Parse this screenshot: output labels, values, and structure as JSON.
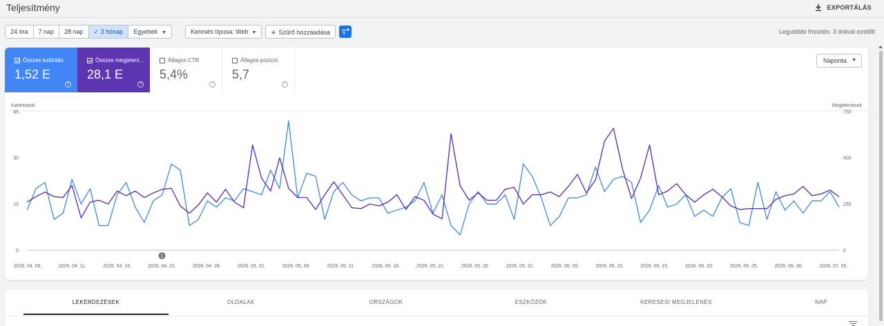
{
  "header": {
    "title": "Teljesítmény",
    "export_label": "EXPORTÁLÁS"
  },
  "filters": {
    "date_ranges": [
      {
        "label": "24 óra",
        "active": false
      },
      {
        "label": "7 nap",
        "active": false
      },
      {
        "label": "28 nap",
        "active": false
      },
      {
        "label": "3 hónap",
        "active": true
      },
      {
        "label": "Egyebek",
        "active": false,
        "dropdown": true
      }
    ],
    "search_type": "Keresés típusa: Web",
    "add_filter": "Szűrő hozzáadása",
    "last_update": "Legutóbbi frissítés: 3 órával ezelőtt"
  },
  "metrics": [
    {
      "label": "Összes kattintás",
      "value": "1,52 E",
      "checked": true,
      "color": "#4285f4"
    },
    {
      "label": "Összes megjelení...",
      "value": "28,1 E",
      "checked": true,
      "color": "#5e35b1"
    },
    {
      "label": "Átlagos CTR",
      "value": "5,4%",
      "checked": false
    },
    {
      "label": "Átlagos pozíció",
      "value": "5,7",
      "checked": false
    }
  ],
  "interval": "Naponta",
  "annotation_marker": "1",
  "chart_data": {
    "type": "line",
    "left_axis": {
      "title": "Kattintások",
      "ticks": [
        "45",
        "30",
        "15",
        "0"
      ],
      "range": [
        0,
        45
      ]
    },
    "right_axis": {
      "title": "Megjelenések",
      "ticks": [
        "750",
        "500",
        "250",
        "0"
      ],
      "range": [
        0,
        750
      ]
    },
    "x_labels": [
      "2026. 04. 06.",
      "2026. 04. 11.",
      "2026. 04. 16.",
      "2026. 04. 21.",
      "2026. 04. 26.",
      "2026. 05. 01.",
      "2026. 05. 06.",
      "2026. 05. 11.",
      "2026. 05. 16.",
      "2026. 05. 21.",
      "2026. 05. 26.",
      "2026. 05. 31.",
      "2026. 06. 05.",
      "2026. 06. 10.",
      "2026. 06. 15.",
      "2026. 06. 20.",
      "2026. 06. 25.",
      "2026. 06. 30.",
      "2026. 07. 05."
    ],
    "annotation_date": "2026. 04. 21.",
    "series": [
      {
        "name": "Kattintások",
        "axis": "left",
        "color": "#4a90d9",
        "values": [
          13,
          20,
          22,
          10,
          12,
          23,
          15,
          20,
          8,
          8,
          18,
          22,
          14,
          9,
          16,
          18,
          28,
          26,
          8,
          10,
          16,
          14,
          17,
          16,
          20,
          19,
          18,
          26,
          20,
          42,
          17,
          25,
          24,
          10,
          19,
          22,
          18,
          16,
          17,
          17,
          12,
          13,
          14,
          16,
          22,
          12,
          18,
          8,
          5,
          15,
          19,
          15,
          15,
          18,
          10,
          28,
          24,
          17,
          8,
          11,
          17,
          17,
          18,
          27,
          19,
          23,
          24,
          22,
          9,
          13,
          21,
          14,
          15,
          18,
          11,
          13,
          11,
          17,
          20,
          9,
          8,
          22,
          10,
          19,
          13,
          16,
          12,
          16,
          16,
          19,
          14
        ]
      },
      {
        "name": "Megjelenések",
        "axis": "right",
        "color": "#5e35b1",
        "values": [
          260,
          290,
          315,
          290,
          285,
          350,
          175,
          260,
          270,
          250,
          320,
          295,
          320,
          285,
          310,
          330,
          335,
          240,
          200,
          245,
          310,
          260,
          330,
          260,
          230,
          570,
          390,
          320,
          500,
          335,
          285,
          285,
          220,
          300,
          370,
          300,
          230,
          225,
          250,
          240,
          260,
          300,
          220,
          290,
          270,
          195,
          170,
          630,
          350,
          270,
          310,
          270,
          270,
          330,
          340,
          250,
          300,
          300,
          315,
          290,
          345,
          410,
          310,
          380,
          590,
          660,
          440,
          280,
          390,
          570,
          300,
          320,
          360,
          300,
          260,
          300,
          330,
          290,
          240,
          220,
          225,
          225,
          225,
          275,
          295,
          305,
          345,
          295,
          305,
          325,
          290
        ]
      }
    ]
  },
  "tabs": [
    {
      "label": "LEKÉRDEZÉSEK",
      "active": true
    },
    {
      "label": "OLDALAK",
      "active": false
    },
    {
      "label": "ORSZÁGOK",
      "active": false
    },
    {
      "label": "ESZKÖZÖK",
      "active": false
    },
    {
      "label": "KERESÉSI MEGJELENÉS",
      "active": false
    },
    {
      "label": "NAP",
      "active": false
    }
  ]
}
